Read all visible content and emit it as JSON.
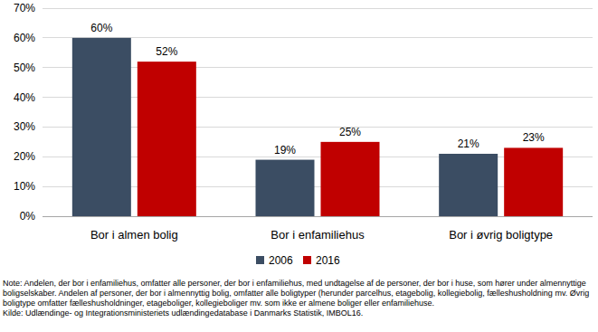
{
  "chart_data": {
    "type": "bar",
    "categories": [
      "Bor i almen bolig",
      "Bor i enfamiliehus",
      "Bor i øvrig boligtype"
    ],
    "series": [
      {
        "name": "2006",
        "color": "#3b4d63",
        "values": [
          60,
          19,
          21
        ],
        "value_labels": [
          "60%",
          "19%",
          "21%"
        ]
      },
      {
        "name": "2016",
        "color": "#c00000",
        "values": [
          52,
          25,
          23
        ],
        "value_labels": [
          "52%",
          "25%",
          "23%"
        ]
      }
    ],
    "ylim": [
      0,
      70
    ],
    "yticks": [
      {
        "value": 0,
        "label": "0%"
      },
      {
        "value": 10,
        "label": "10%"
      },
      {
        "value": 20,
        "label": "20%"
      },
      {
        "value": 30,
        "label": "30%"
      },
      {
        "value": 40,
        "label": "40%"
      },
      {
        "value": 50,
        "label": "50%"
      },
      {
        "value": 60,
        "label": "60%"
      },
      {
        "value": 70,
        "label": "70%"
      }
    ],
    "grid": true,
    "legend": "bottom",
    "data_labels": true,
    "annotations": [
      "Note: Andelen, der bor i enfamiliehus, omfatter alle personer, der bor i enfamiliehus, med undtagelse af de personer, der bor i huse, som hører under almennyttige boligselskaber. Andelen af personer, der bor i almennyttig bolig, omfatter alle boligtyper (herunder parcelhus, etagebolig, kollegiebolig, fælleshusholdning mv. Øvrig boligtype omfatter fælleshusholdninger, etageboliger, kollegieboliger mv. som ikke er almene boliger eller enfamiliehuse.",
      "Kilde: Udlændinge- og Integrationsministeriets udlændingedatabase i Danmarks Statistik, IMBOL16."
    ]
  }
}
